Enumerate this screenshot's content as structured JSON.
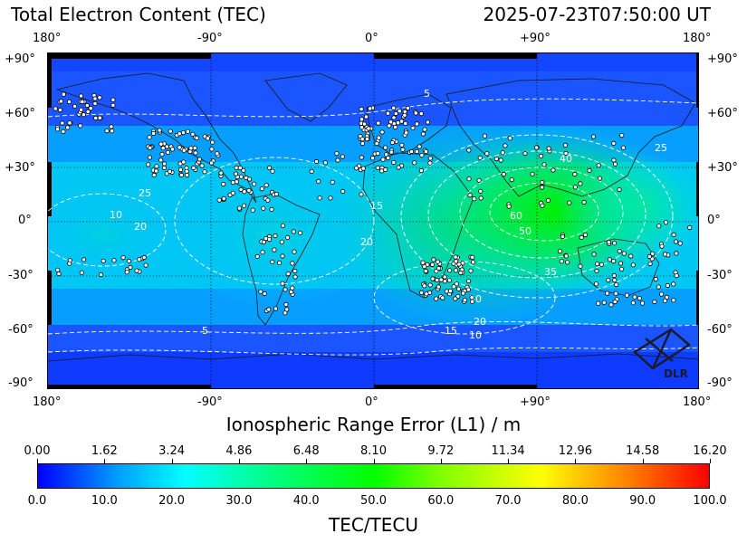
{
  "header": {
    "title": "Total Electron Content (TEC)",
    "timestamp": "2025-07-23T07:50:00 UT"
  },
  "map": {
    "lon_labels": [
      "180°",
      "-90°",
      "0°",
      "+90°",
      "180°"
    ],
    "lat_labels": [
      "+90°",
      "+60°",
      "+30°",
      "0°",
      "-30°",
      "-60°",
      "-90°"
    ],
    "contour_labels": [
      "5",
      "10",
      "15",
      "20",
      "25",
      "30",
      "35",
      "40",
      "50",
      "60"
    ],
    "logo_text": "DLR"
  },
  "axes": {
    "xlabel": "Ionospheric Range Error (L1) / m",
    "colorbar_label": "TEC/TECU"
  },
  "colorbar": {
    "top_ticks": [
      "0.00",
      "1.62",
      "3.24",
      "4.86",
      "6.48",
      "8.10",
      "9.72",
      "11.34",
      "12.96",
      "14.58",
      "16.20"
    ],
    "bottom_ticks": [
      "0.0",
      "10.0",
      "20.0",
      "30.0",
      "40.0",
      "50.0",
      "60.0",
      "70.0",
      "80.0",
      "90.0",
      "100.0"
    ],
    "range": [
      0,
      100
    ],
    "colors": [
      "#0000ff",
      "#00a0ff",
      "#00ffff",
      "#00ff80",
      "#00ff00",
      "#80ff00",
      "#ffff00",
      "#ff8000",
      "#ff0000"
    ]
  }
}
